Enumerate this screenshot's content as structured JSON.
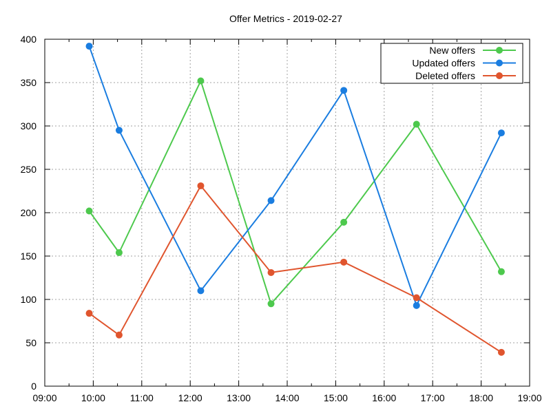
{
  "chart_data": {
    "type": "line",
    "title": "Offer Metrics - 2019-02-27",
    "xlabel": "",
    "ylabel": "",
    "xlim": [
      "09:00",
      "19:00"
    ],
    "ylim": [
      0,
      400
    ],
    "x_ticks": [
      "09:00",
      "10:00",
      "11:00",
      "12:00",
      "13:00",
      "14:00",
      "15:00",
      "16:00",
      "17:00",
      "18:00",
      "19:00"
    ],
    "y_ticks": [
      0,
      50,
      100,
      150,
      200,
      250,
      300,
      350,
      400
    ],
    "grid": true,
    "legend_position": "top-right",
    "x": [
      "09:55",
      "10:32",
      "12:13",
      "13:40",
      "15:10",
      "16:40",
      "18:25"
    ],
    "series": [
      {
        "name": "New offers",
        "color": "#4dc94d",
        "values": [
          202,
          154,
          352,
          95,
          189,
          302,
          132
        ]
      },
      {
        "name": "Updated offers",
        "color": "#1a7de0",
        "values": [
          392,
          295,
          110,
          214,
          341,
          93,
          292
        ]
      },
      {
        "name": "Deleted offers",
        "color": "#e0552e",
        "values": [
          84,
          59,
          231,
          131,
          143,
          102,
          39
        ]
      }
    ]
  }
}
